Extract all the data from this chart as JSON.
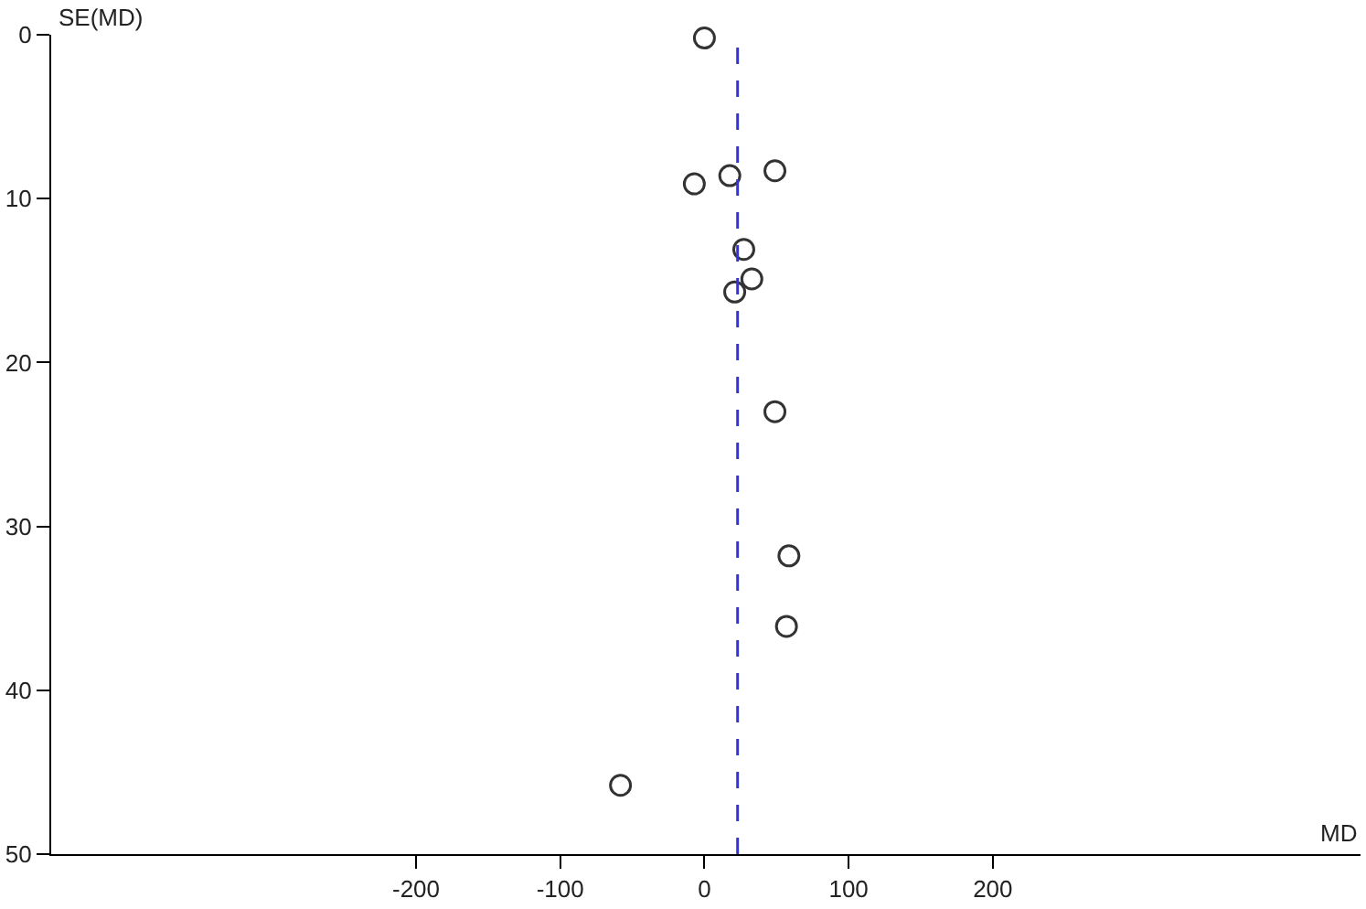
{
  "chart_data": {
    "type": "scatter",
    "xlabel": "MD",
    "ylabel": "SE(MD)",
    "x": [
      0,
      -7,
      17.6,
      48.9,
      27.3,
      32.9,
      21,
      48.9,
      58.6,
      56.9,
      -58.2
    ],
    "series": [
      {
        "color": "#333333",
        "values": [
          0.2,
          9.1,
          8.6,
          8.3,
          13.1,
          14.9,
          15.7,
          23.0,
          31.8,
          36.1,
          45.8
        ]
      }
    ],
    "marker": "circle",
    "xlim": [
      -453,
      455
    ],
    "xticks": [
      -200,
      -100,
      0,
      100,
      200
    ],
    "ylim": [
      50,
      0
    ],
    "yticks": [
      0,
      10,
      20,
      30,
      40,
      50
    ],
    "ref_lines": [
      {
        "axis": "x",
        "value": 23,
        "color": "#3333dd",
        "line_style": "dashed"
      }
    ]
  }
}
